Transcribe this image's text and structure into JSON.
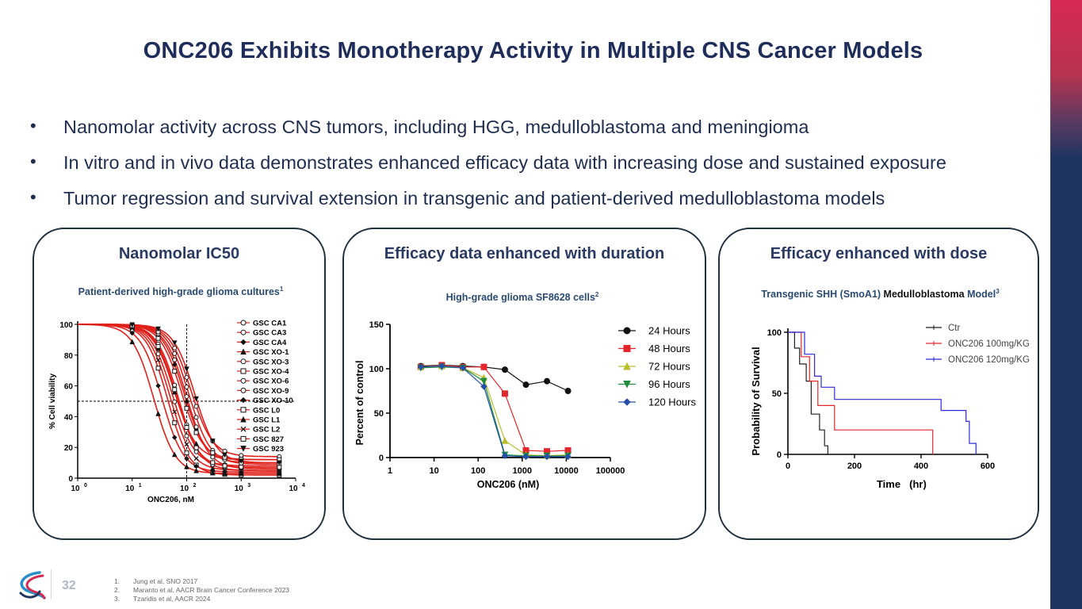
{
  "title": "ONC206 Exhibits Monotherapy Activity in Multiple CNS Cancer Models",
  "bullets": [
    "Nanomolar activity across CNS tumors, including HGG, medulloblastoma and meningioma",
    "In vitro and in vivo data demonstrates enhanced efficacy data with increasing dose and sustained exposure",
    "Tumor regression and survival extension in transgenic and patient-derived medulloblastoma models"
  ],
  "panels": [
    {
      "title": "Nanomolar IC50",
      "subtitle": "Patient-derived high-grade glioma cultures",
      "sup": "1"
    },
    {
      "title": "Efficacy data enhanced with duration",
      "subtitle": "High-grade glioma SF8628 cells",
      "sup": "2"
    },
    {
      "title": "Efficacy enhanced with dose",
      "subtitle_a": "Transgenic SHH (SmoA1) ",
      "subtitle_b": "Medulloblastoma",
      "subtitle_c": " Model",
      "sup": "3"
    }
  ],
  "page_number": "32",
  "references": [
    {
      "n": "1.",
      "text": "Jung et al, SNO 2017"
    },
    {
      "n": "2.",
      "text": "Maranto et al, AACR Brain Cancer Conference 2023"
    },
    {
      "n": "3.",
      "text": "Tzaridis et al, AACR 2024"
    }
  ],
  "colors": {
    "navy": "#1f2d5a",
    "accent": "#d62a52",
    "sidebar": "#1f3560",
    "curve_red": "#e0201b"
  },
  "chart_data": [
    {
      "type": "line",
      "xscale": "log",
      "xlabel": "ONC206, nM",
      "ylabel": "% Cell viability",
      "xlim": [
        1,
        10000
      ],
      "ylim": [
        0,
        100
      ],
      "x_ticks": [
        "10",
        "10",
        "10",
        "10",
        "10"
      ],
      "x_tick_exp": [
        "0",
        "1",
        "2",
        "3",
        "4"
      ],
      "y_ticks": [
        "0",
        "20",
        "40",
        "60",
        "80",
        "100"
      ],
      "reference_lines": {
        "ic50_x": 100,
        "half_y": 50
      },
      "series": [
        {
          "name": "GSC CA1",
          "ic50": 70,
          "bottom": 5,
          "marker": "o"
        },
        {
          "name": "GSC CA3",
          "ic50": 55,
          "bottom": 8,
          "marker": "o"
        },
        {
          "name": "GSC CA4",
          "ic50": 90,
          "bottom": 10,
          "marker": "d"
        },
        {
          "name": "GSC XO-1",
          "ic50": 60,
          "bottom": 12,
          "marker": "^"
        },
        {
          "name": "GSC XO-3",
          "ic50": 100,
          "bottom": 6,
          "marker": "o"
        },
        {
          "name": "GSC XO-4",
          "ic50": 45,
          "bottom": 2,
          "marker": "s"
        },
        {
          "name": "GSC XO-6",
          "ic50": 120,
          "bottom": 14,
          "marker": "o"
        },
        {
          "name": "GSC XO-9",
          "ic50": 110,
          "bottom": 9,
          "marker": "o"
        },
        {
          "name": "GSC XO-10",
          "ic50": 35,
          "bottom": 4,
          "marker": "d"
        },
        {
          "name": "GSC L0",
          "ic50": 65,
          "bottom": 7,
          "marker": "s"
        },
        {
          "name": "GSC L1",
          "ic50": 25,
          "bottom": 3,
          "marker": "^"
        },
        {
          "name": "GSC L2",
          "ic50": 50,
          "bottom": 5,
          "marker": "x"
        },
        {
          "name": "GSC 827",
          "ic50": 80,
          "bottom": 12,
          "marker": "s"
        },
        {
          "name": "GSC 923",
          "ic50": 140,
          "bottom": 10,
          "marker": "v"
        }
      ]
    },
    {
      "type": "line",
      "xscale": "log",
      "xlabel": "ONC206 (nM)",
      "ylabel": "Percent of control",
      "xlim": [
        1,
        100000
      ],
      "ylim": [
        0,
        150
      ],
      "x_ticks": [
        "1",
        "10",
        "100",
        "1000",
        "10000",
        "100000"
      ],
      "y_ticks": [
        "0",
        "50",
        "100",
        "150"
      ],
      "x": [
        5,
        15,
        45,
        135,
        405,
        1215,
        3645,
        10935
      ],
      "series": [
        {
          "name": "24 Hours",
          "color": "#111111",
          "marker": "circle",
          "values": [
            103,
            104,
            103,
            102,
            99,
            82,
            86,
            75
          ]
        },
        {
          "name": "48 Hours",
          "color": "#e3262c",
          "marker": "square",
          "values": [
            102,
            104,
            102,
            102,
            72,
            8,
            7,
            8
          ]
        },
        {
          "name": "72 Hours",
          "color": "#b8be2c",
          "marker": "triangle",
          "values": [
            102,
            103,
            101,
            90,
            19,
            3,
            2,
            3
          ]
        },
        {
          "name": "96 Hours",
          "color": "#1f8a3c",
          "marker": "triangle-down",
          "values": [
            101,
            102,
            101,
            86,
            3,
            2,
            2,
            2
          ]
        },
        {
          "name": "120 Hours",
          "color": "#2550a8",
          "marker": "diamond",
          "values": [
            102,
            103,
            101,
            80,
            2,
            1,
            1,
            1
          ]
        }
      ]
    },
    {
      "type": "line",
      "step": true,
      "xlabel": "Time",
      "xlabel_unit": "(hr)",
      "ylabel": "Probability of Survival",
      "xlim": [
        0,
        600
      ],
      "ylim": [
        0,
        100
      ],
      "x_ticks": [
        "0",
        "200",
        "400",
        "600"
      ],
      "y_ticks": [
        "0",
        "50",
        "100"
      ],
      "series": [
        {
          "name": "Ctr",
          "color": "#222222",
          "points": [
            [
              0,
              100
            ],
            [
              20,
              100
            ],
            [
              20,
              87
            ],
            [
              35,
              87
            ],
            [
              35,
              74
            ],
            [
              55,
              74
            ],
            [
              55,
              60
            ],
            [
              70,
              60
            ],
            [
              70,
              33
            ],
            [
              95,
              33
            ],
            [
              95,
              20
            ],
            [
              110,
              20
            ],
            [
              110,
              7
            ],
            [
              120,
              7
            ],
            [
              120,
              0
            ]
          ]
        },
        {
          "name": "ONC206 100mg/KG",
          "color": "#e3262c",
          "points": [
            [
              0,
              100
            ],
            [
              40,
              100
            ],
            [
              40,
              80
            ],
            [
              65,
              80
            ],
            [
              65,
              60
            ],
            [
              90,
              60
            ],
            [
              90,
              40
            ],
            [
              140,
              40
            ],
            [
              140,
              20
            ],
            [
              435,
              20
            ],
            [
              435,
              0
            ]
          ]
        },
        {
          "name": "ONC206 120mg/KG",
          "color": "#2b2bd9",
          "points": [
            [
              0,
              100
            ],
            [
              50,
              100
            ],
            [
              50,
              82
            ],
            [
              80,
              82
            ],
            [
              80,
              64
            ],
            [
              100,
              64
            ],
            [
              100,
              55
            ],
            [
              140,
              55
            ],
            [
              140,
              45
            ],
            [
              460,
              45
            ],
            [
              460,
              36
            ],
            [
              535,
              36
            ],
            [
              535,
              27
            ],
            [
              545,
              27
            ],
            [
              545,
              9
            ],
            [
              565,
              9
            ],
            [
              565,
              0
            ]
          ]
        }
      ]
    }
  ]
}
